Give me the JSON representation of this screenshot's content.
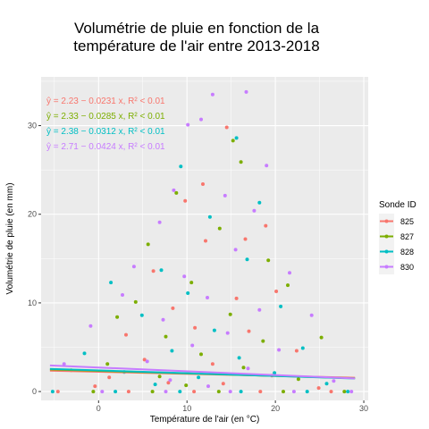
{
  "chart_data": {
    "type": "scatter",
    "title_lines": [
      "Volumétrie de pluie en fonction de la",
      "température de l'air entre 2013-2018"
    ],
    "xlabel": "Température de l'air (en °C)",
    "ylabel": "Volumétrie de pluie (en mm)",
    "xlim": [
      -6.5,
      30.5
    ],
    "ylim": [
      -1.0,
      35.5
    ],
    "x_ticks": [
      0,
      10,
      20,
      30
    ],
    "y_ticks": [
      0,
      10,
      20,
      30
    ],
    "grid": true,
    "legend_title": "Sonde ID",
    "legend_position": "right",
    "series": [
      {
        "name": "825",
        "color": "#F8766D",
        "fit": {
          "intercept": 2.23,
          "slope": -0.0231,
          "x_range": [
            -5.5,
            29
          ]
        },
        "equation": "ŷ = 2.23 − 0.0231 x, R² < 0.01",
        "points": [
          [
            14.5,
            29.8
          ],
          [
            11.8,
            23.4
          ],
          [
            9.8,
            21.5
          ],
          [
            12.1,
            17.0
          ],
          [
            16.6,
            17.2
          ],
          [
            18.9,
            18.7
          ],
          [
            6.2,
            13.6
          ],
          [
            15.6,
            10.5
          ],
          [
            20.1,
            11.3
          ],
          [
            8.4,
            9.4
          ],
          [
            10.9,
            7.2
          ],
          [
            3.1,
            6.4
          ],
          [
            17.0,
            6.8
          ],
          [
            22.4,
            4.6
          ],
          [
            5.2,
            3.6
          ],
          [
            12.9,
            3.1
          ],
          [
            1.2,
            1.6
          ],
          [
            19.6,
            1.8
          ],
          [
            24.9,
            0.4
          ],
          [
            7.9,
            1.0
          ],
          [
            -0.4,
            0.6
          ],
          [
            14.1,
            0.9
          ],
          [
            3.4,
            0.0
          ],
          [
            10.8,
            0.0
          ],
          [
            18.3,
            0.0
          ],
          [
            26.3,
            0.0
          ],
          [
            -4.6,
            0.0
          ]
        ]
      },
      {
        "name": "827",
        "color": "#7CAE00",
        "fit": {
          "intercept": 2.33,
          "slope": -0.0285,
          "x_range": [
            -5.5,
            29
          ]
        },
        "equation": "ŷ = 2.33 − 0.0285 x, R² < 0.01",
        "points": [
          [
            15.2,
            28.3
          ],
          [
            16.1,
            25.9
          ],
          [
            8.8,
            22.4
          ],
          [
            13.7,
            18.4
          ],
          [
            19.2,
            14.8
          ],
          [
            5.6,
            16.6
          ],
          [
            10.5,
            12.3
          ],
          [
            21.4,
            12.0
          ],
          [
            4.2,
            10.1
          ],
          [
            2.1,
            8.4
          ],
          [
            14.9,
            8.7
          ],
          [
            7.6,
            6.2
          ],
          [
            18.6,
            5.7
          ],
          [
            25.2,
            6.1
          ],
          [
            -3.1,
            2.4
          ],
          [
            11.6,
            4.2
          ],
          [
            1.0,
            3.1
          ],
          [
            16.4,
            2.7
          ],
          [
            22.6,
            1.4
          ],
          [
            6.9,
            1.7
          ],
          [
            9.9,
            0.7
          ],
          [
            -0.6,
            0.0
          ],
          [
            6.1,
            0.0
          ],
          [
            13.6,
            0.0
          ],
          [
            20.9,
            0.0
          ],
          [
            27.8,
            0.0
          ]
        ]
      },
      {
        "name": "828",
        "color": "#00BFC4",
        "fit": {
          "intercept": 2.38,
          "slope": -0.0312,
          "x_range": [
            -5.5,
            29
          ]
        },
        "equation": "ŷ = 2.38 − 0.0312 x, R² < 0.01",
        "points": [
          [
            15.6,
            28.6
          ],
          [
            9.3,
            25.4
          ],
          [
            12.6,
            19.7
          ],
          [
            18.2,
            21.3
          ],
          [
            7.1,
            13.7
          ],
          [
            16.8,
            14.9
          ],
          [
            10.1,
            11.1
          ],
          [
            20.6,
            9.6
          ],
          [
            1.4,
            12.3
          ],
          [
            4.9,
            8.6
          ],
          [
            13.1,
            6.9
          ],
          [
            23.1,
            4.9
          ],
          [
            -1.6,
            4.3
          ],
          [
            8.3,
            4.6
          ],
          [
            15.9,
            3.8
          ],
          [
            2.9,
            2.2
          ],
          [
            11.3,
            1.6
          ],
          [
            19.9,
            2.1
          ],
          [
            6.4,
            0.8
          ],
          [
            25.8,
            0.9
          ],
          [
            -5.2,
            0.0
          ],
          [
            1.9,
            0.0
          ],
          [
            9.2,
            0.0
          ],
          [
            16.1,
            0.0
          ],
          [
            23.6,
            0.0
          ],
          [
            28.2,
            0.0
          ]
        ]
      },
      {
        "name": "830",
        "color": "#C77CFF",
        "fit": {
          "intercept": 2.71,
          "slope": -0.0424,
          "x_range": [
            -5.5,
            29
          ]
        },
        "equation": "ŷ = 2.71 − 0.0424 x, R² < 0.01",
        "points": [
          [
            16.7,
            33.8
          ],
          [
            12.9,
            33.5
          ],
          [
            11.6,
            30.7
          ],
          [
            10.1,
            30.1
          ],
          [
            19.0,
            25.5
          ],
          [
            8.5,
            22.7
          ],
          [
            14.3,
            22.1
          ],
          [
            17.6,
            20.4
          ],
          [
            6.9,
            19.1
          ],
          [
            15.5,
            16.0
          ],
          [
            4.0,
            14.1
          ],
          [
            9.7,
            13.0
          ],
          [
            21.6,
            13.4
          ],
          [
            12.3,
            10.6
          ],
          [
            2.7,
            10.9
          ],
          [
            18.2,
            9.2
          ],
          [
            7.3,
            8.1
          ],
          [
            24.1,
            8.6
          ],
          [
            14.6,
            6.6
          ],
          [
            -0.9,
            7.4
          ],
          [
            10.6,
            5.2
          ],
          [
            20.4,
            4.7
          ],
          [
            5.5,
            3.4
          ],
          [
            -3.9,
            3.1
          ],
          [
            16.9,
            2.6
          ],
          [
            8.1,
            1.3
          ],
          [
            12.4,
            0.6
          ],
          [
            26.6,
            1.2
          ],
          [
            0.4,
            0.0
          ],
          [
            7.6,
            0.0
          ],
          [
            14.9,
            0.0
          ],
          [
            22.1,
            0.0
          ],
          [
            28.6,
            0.0
          ]
        ]
      }
    ]
  }
}
